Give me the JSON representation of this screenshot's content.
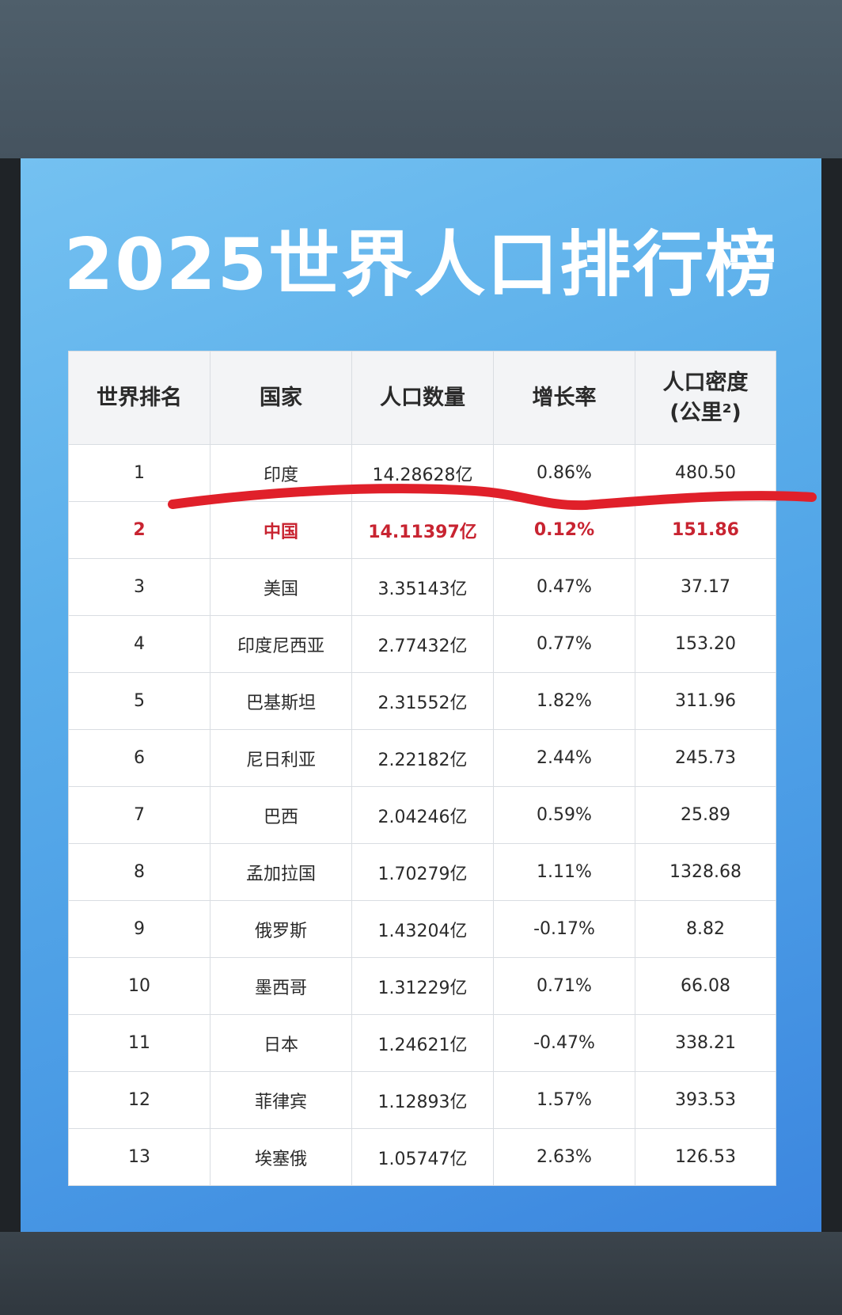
{
  "title": "2025世界人口排行榜",
  "table": {
    "headers": [
      "世界排名",
      "国家",
      "人口数量",
      "增长率",
      "人口密度"
    ],
    "header_density_sub": "(公里²)",
    "rows": [
      {
        "rank": "1",
        "country": "印度",
        "population": "14.28628亿",
        "growth": "0.86%",
        "density": "480.50"
      },
      {
        "rank": "2",
        "country": "中国",
        "population": "14.11397亿",
        "growth": "0.12%",
        "density": "151.86"
      },
      {
        "rank": "3",
        "country": "美国",
        "population": "3.35143亿",
        "growth": "0.47%",
        "density": "37.17"
      },
      {
        "rank": "4",
        "country": "印度尼西亚",
        "population": "2.77432亿",
        "growth": "0.77%",
        "density": "153.20"
      },
      {
        "rank": "5",
        "country": "巴基斯坦",
        "population": "2.31552亿",
        "growth": "1.82%",
        "density": "311.96"
      },
      {
        "rank": "6",
        "country": "尼日利亚",
        "population": "2.22182亿",
        "growth": "2.44%",
        "density": "245.73"
      },
      {
        "rank": "7",
        "country": "巴西",
        "population": "2.04246亿",
        "growth": "0.59%",
        "density": "25.89"
      },
      {
        "rank": "8",
        "country": "孟加拉国",
        "population": "1.70279亿",
        "growth": "1.11%",
        "density": "1328.68"
      },
      {
        "rank": "9",
        "country": "俄罗斯",
        "population": "1.43204亿",
        "growth": "-0.17%",
        "density": "8.82"
      },
      {
        "rank": "10",
        "country": "墨西哥",
        "population": "1.31229亿",
        "growth": "0.71%",
        "density": "66.08"
      },
      {
        "rank": "11",
        "country": "日本",
        "population": "1.24621亿",
        "growth": "-0.47%",
        "density": "338.21"
      },
      {
        "rank": "12",
        "country": "菲律宾",
        "population": "1.12893亿",
        "growth": "1.57%",
        "density": "393.53"
      },
      {
        "rank": "13",
        "country": "埃塞俄",
        "population": "1.05747亿",
        "growth": "2.63%",
        "density": "126.53"
      }
    ],
    "highlight_rank": "2"
  },
  "colors": {
    "highlight_text": "#c82431",
    "annotation_stroke": "#e0202a",
    "poster_accent": "#4a9be5"
  }
}
